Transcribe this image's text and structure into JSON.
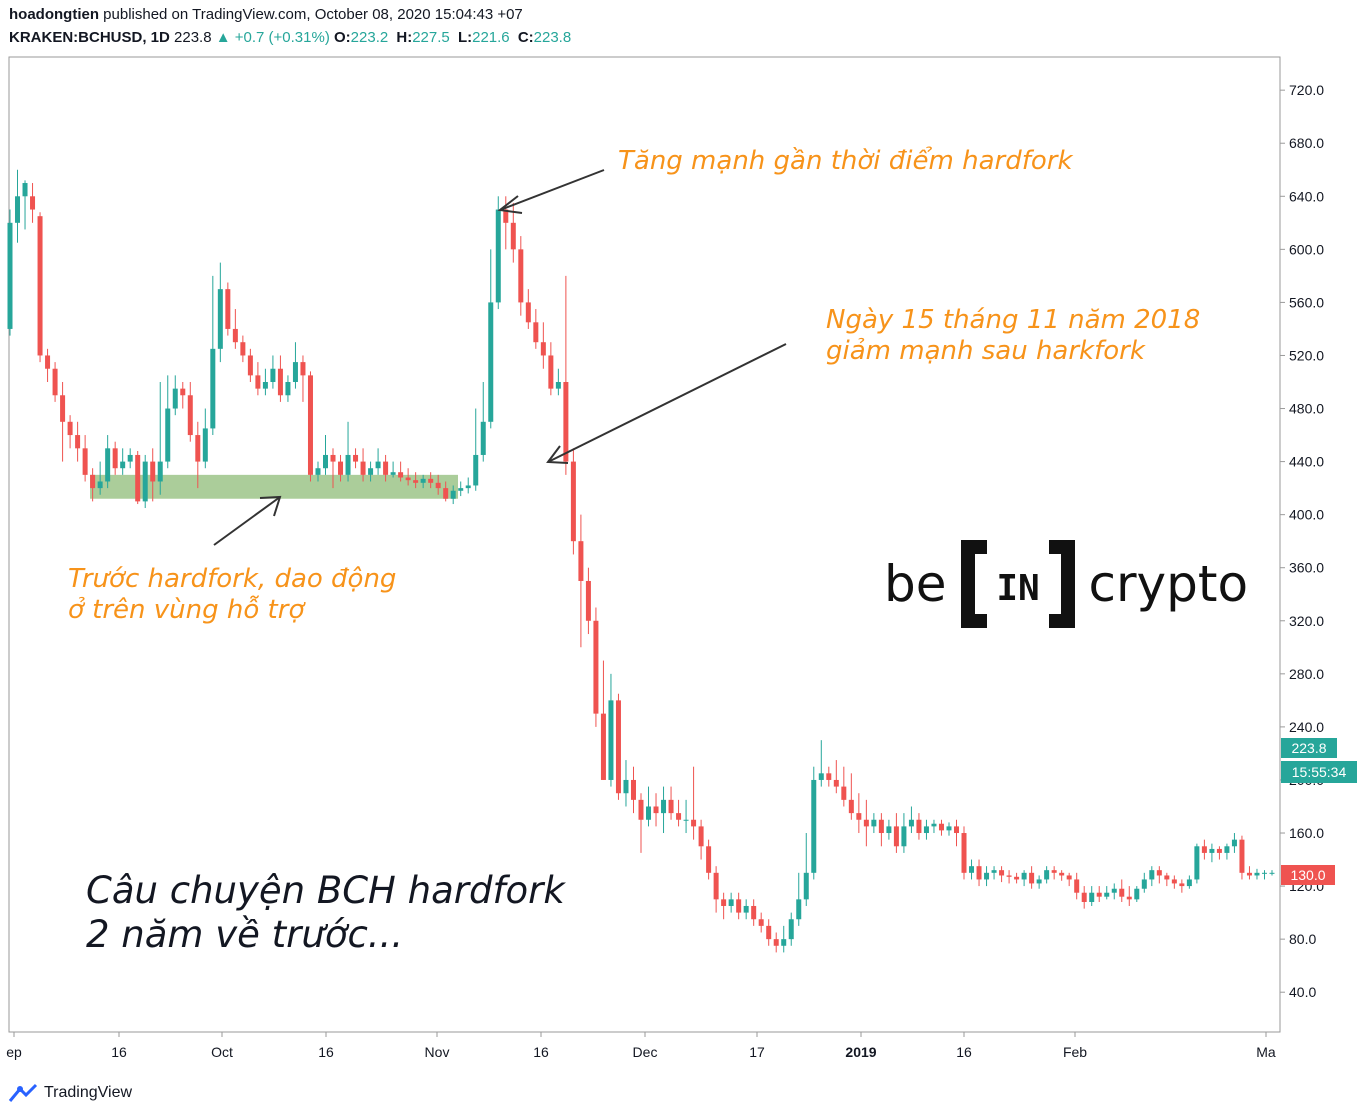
{
  "header": {
    "user": "hoadongtien",
    "published": "published on TradingView.com, October 08, 2020 15:04:43 +07",
    "symbol": "KRAKEN:BCHUSD, 1D",
    "last": "223.8",
    "change": "+0.7 (+0.31%)",
    "o_label": "O:",
    "o_value": "223.2",
    "h_label": "H:",
    "h_value": "227.5",
    "l_label": "L:",
    "l_value": "221.6",
    "c_label": "C:",
    "c_value": "223.8"
  },
  "price_tags": {
    "last_price": "223.8",
    "countdown": "15:55:34",
    "marker_price": "130.0"
  },
  "annotations": {
    "peak_note": "Tăng mạnh gần thời điểm hardfork",
    "drop_note_line1": "Ngày 15 tháng 11 năm 2018",
    "drop_note_line2": "giảm mạnh sau harkfork",
    "support_note_line1": "Trước hardfork, dao động",
    "support_note_line2": "ở trên vùng hỗ trợ",
    "story_line1": "Câu chuyện BCH hardfork",
    "story_line2": "2 năm về trước..."
  },
  "logo": {
    "left": "be",
    "mid": "IN",
    "right": "crypto"
  },
  "footer": {
    "brand": "TradingView"
  },
  "colors": {
    "up": "#26a69a",
    "down": "#ef5350",
    "accent": "#f7931a",
    "support_zone": "#8fbc78"
  },
  "icons": {
    "tradingview_logo": "tradingview-logo-icon"
  },
  "chart_data": {
    "type": "candlestick",
    "symbol": "KRAKEN:BCHUSD",
    "interval": "1D",
    "ylim": [
      10,
      745
    ],
    "ylabel_side": "right",
    "y_ticks": [
      "40.0",
      "80.0",
      "120.0",
      "160.0",
      "200.0",
      "240.0",
      "280.0",
      "320.0",
      "360.0",
      "400.0",
      "440.0",
      "480.0",
      "520.0",
      "560.0",
      "600.0",
      "640.0",
      "680.0",
      "720.0"
    ],
    "x_ticks": [
      "ep",
      "16",
      "Oct",
      "16",
      "Nov",
      "16",
      "Dec",
      "17",
      "2019",
      "16",
      "Feb",
      "Ma"
    ],
    "support_zone": [
      412,
      430
    ],
    "candles": [
      [
        540,
        620,
        535,
        630
      ],
      [
        620,
        640,
        605,
        660
      ],
      [
        640,
        650,
        615,
        652
      ],
      [
        640,
        630,
        620,
        650
      ],
      [
        625,
        520,
        515,
        628
      ],
      [
        520,
        510,
        500,
        525
      ],
      [
        510,
        490,
        485,
        515
      ],
      [
        490,
        470,
        440,
        500
      ],
      [
        470,
        460,
        450,
        475
      ],
      [
        460,
        450,
        440,
        470
      ],
      [
        450,
        430,
        425,
        460
      ],
      [
        430,
        420,
        410,
        435
      ],
      [
        420,
        425,
        415,
        440
      ],
      [
        425,
        450,
        420,
        460
      ],
      [
        450,
        435,
        430,
        455
      ],
      [
        435,
        440,
        430,
        450
      ],
      [
        440,
        445,
        435,
        450
      ],
      [
        445,
        410,
        408,
        448
      ],
      [
        410,
        440,
        405,
        445
      ],
      [
        440,
        425,
        410,
        450
      ],
      [
        425,
        440,
        415,
        500
      ],
      [
        440,
        480,
        435,
        505
      ],
      [
        480,
        495,
        475,
        505
      ],
      [
        495,
        490,
        480,
        500
      ],
      [
        490,
        460,
        455,
        500
      ],
      [
        460,
        440,
        420,
        470
      ],
      [
        440,
        465,
        435,
        480
      ],
      [
        465,
        525,
        460,
        580
      ],
      [
        525,
        570,
        515,
        590
      ],
      [
        570,
        540,
        535,
        575
      ],
      [
        540,
        530,
        525,
        555
      ],
      [
        530,
        520,
        515,
        535
      ],
      [
        520,
        505,
        500,
        525
      ],
      [
        505,
        495,
        490,
        515
      ],
      [
        495,
        500,
        490,
        510
      ],
      [
        500,
        510,
        495,
        520
      ],
      [
        510,
        490,
        485,
        520
      ],
      [
        490,
        500,
        485,
        505
      ],
      [
        500,
        515,
        495,
        530
      ],
      [
        515,
        505,
        485,
        520
      ],
      [
        505,
        430,
        425,
        508
      ],
      [
        430,
        435,
        425,
        440
      ],
      [
        435,
        445,
        430,
        460
      ],
      [
        445,
        440,
        420,
        450
      ],
      [
        440,
        430,
        425,
        445
      ],
      [
        430,
        445,
        425,
        470
      ],
      [
        445,
        440,
        435,
        450
      ],
      [
        440,
        430,
        425,
        450
      ],
      [
        430,
        435,
        425,
        440
      ],
      [
        435,
        440,
        430,
        450
      ],
      [
        440,
        430,
        425,
        445
      ],
      [
        430,
        432,
        428,
        440
      ],
      [
        432,
        428,
        425,
        440
      ],
      [
        428,
        426,
        422,
        435
      ],
      [
        426,
        424,
        420,
        432
      ],
      [
        424,
        427,
        420,
        430
      ],
      [
        427,
        424,
        420,
        432
      ],
      [
        424,
        420,
        415,
        430
      ],
      [
        420,
        412,
        410,
        425
      ],
      [
        412,
        418,
        408,
        422
      ],
      [
        418,
        420,
        414,
        425
      ],
      [
        420,
        422,
        416,
        428
      ],
      [
        422,
        445,
        418,
        480
      ],
      [
        445,
        470,
        440,
        500
      ],
      [
        470,
        560,
        465,
        600
      ],
      [
        560,
        630,
        555,
        640
      ],
      [
        630,
        620,
        600,
        640
      ],
      [
        620,
        600,
        590,
        635
      ],
      [
        600,
        560,
        550,
        610
      ],
      [
        560,
        545,
        540,
        570
      ],
      [
        545,
        530,
        525,
        555
      ],
      [
        530,
        520,
        510,
        545
      ],
      [
        520,
        495,
        490,
        530
      ],
      [
        495,
        500,
        490,
        510
      ],
      [
        500,
        440,
        430,
        580
      ],
      [
        440,
        380,
        370,
        450
      ],
      [
        380,
        350,
        300,
        400
      ],
      [
        350,
        320,
        310,
        360
      ],
      [
        320,
        250,
        240,
        330
      ],
      [
        250,
        200,
        200,
        290
      ],
      [
        200,
        260,
        195,
        280
      ],
      [
        260,
        190,
        185,
        265
      ],
      [
        190,
        200,
        180,
        215
      ],
      [
        200,
        185,
        175,
        210
      ],
      [
        185,
        170,
        145,
        190
      ],
      [
        170,
        180,
        165,
        195
      ],
      [
        180,
        175,
        165,
        190
      ],
      [
        175,
        185,
        160,
        195
      ],
      [
        185,
        175,
        170,
        195
      ],
      [
        175,
        170,
        165,
        185
      ],
      [
        170,
        170,
        160,
        185
      ],
      [
        170,
        165,
        155,
        210
      ],
      [
        165,
        150,
        140,
        170
      ],
      [
        150,
        130,
        125,
        155
      ],
      [
        130,
        110,
        100,
        135
      ],
      [
        110,
        105,
        95,
        115
      ],
      [
        105,
        110,
        100,
        115
      ],
      [
        110,
        100,
        95,
        115
      ],
      [
        100,
        105,
        95,
        110
      ],
      [
        105,
        95,
        90,
        110
      ],
      [
        95,
        90,
        85,
        100
      ],
      [
        90,
        80,
        75,
        95
      ],
      [
        80,
        75,
        70,
        85
      ],
      [
        75,
        80,
        70,
        90
      ],
      [
        80,
        95,
        75,
        100
      ],
      [
        95,
        110,
        90,
        130
      ],
      [
        110,
        130,
        105,
        160
      ],
      [
        130,
        200,
        125,
        210
      ],
      [
        200,
        205,
        195,
        230
      ],
      [
        205,
        200,
        195,
        210
      ],
      [
        200,
        195,
        190,
        215
      ],
      [
        195,
        185,
        180,
        210
      ],
      [
        185,
        175,
        170,
        205
      ],
      [
        175,
        170,
        160,
        190
      ],
      [
        170,
        165,
        150,
        185
      ],
      [
        165,
        170,
        160,
        175
      ],
      [
        170,
        160,
        150,
        175
      ],
      [
        160,
        165,
        155,
        170
      ],
      [
        165,
        150,
        145,
        175
      ],
      [
        150,
        165,
        145,
        175
      ],
      [
        165,
        170,
        160,
        180
      ],
      [
        170,
        160,
        155,
        175
      ],
      [
        160,
        165,
        155,
        170
      ],
      [
        165,
        167,
        160,
        170
      ],
      [
        167,
        162,
        158,
        170
      ],
      [
        162,
        165,
        158,
        168
      ],
      [
        165,
        160,
        150,
        170
      ],
      [
        160,
        130,
        125,
        165
      ],
      [
        130,
        135,
        125,
        140
      ],
      [
        135,
        125,
        120,
        140
      ],
      [
        125,
        130,
        120,
        135
      ],
      [
        130,
        132,
        125,
        135
      ],
      [
        132,
        128,
        123,
        135
      ],
      [
        128,
        127,
        122,
        132
      ],
      [
        127,
        125,
        122,
        130
      ],
      [
        125,
        130,
        120,
        132
      ],
      [
        130,
        122,
        118,
        135
      ],
      [
        122,
        125,
        118,
        128
      ],
      [
        125,
        132,
        122,
        135
      ],
      [
        132,
        130,
        125,
        135
      ],
      [
        130,
        128,
        124,
        132
      ],
      [
        128,
        125,
        120,
        130
      ],
      [
        125,
        115,
        110,
        130
      ],
      [
        115,
        108,
        103,
        120
      ],
      [
        108,
        115,
        105,
        120
      ],
      [
        115,
        112,
        108,
        120
      ],
      [
        112,
        115,
        110,
        120
      ],
      [
        115,
        118,
        110,
        122
      ],
      [
        118,
        112,
        108,
        125
      ],
      [
        112,
        110,
        105,
        120
      ],
      [
        110,
        118,
        108,
        120
      ],
      [
        118,
        125,
        115,
        130
      ],
      [
        125,
        132,
        120,
        135
      ],
      [
        132,
        128,
        122,
        135
      ],
      [
        128,
        125,
        120,
        130
      ],
      [
        125,
        122,
        118,
        128
      ],
      [
        122,
        120,
        115,
        125
      ],
      [
        120,
        125,
        118,
        128
      ],
      [
        125,
        150,
        122,
        152
      ],
      [
        150,
        145,
        140,
        155
      ],
      [
        145,
        148,
        138,
        152
      ],
      [
        148,
        145,
        140,
        150
      ],
      [
        145,
        150,
        140,
        152
      ],
      [
        150,
        155,
        145,
        160
      ],
      [
        155,
        130,
        125,
        158
      ],
      [
        130,
        128,
        125,
        135
      ],
      [
        128,
        130,
        125,
        133
      ],
      [
        130,
        130,
        125,
        132
      ],
      [
        130,
        130,
        128,
        132
      ]
    ]
  }
}
